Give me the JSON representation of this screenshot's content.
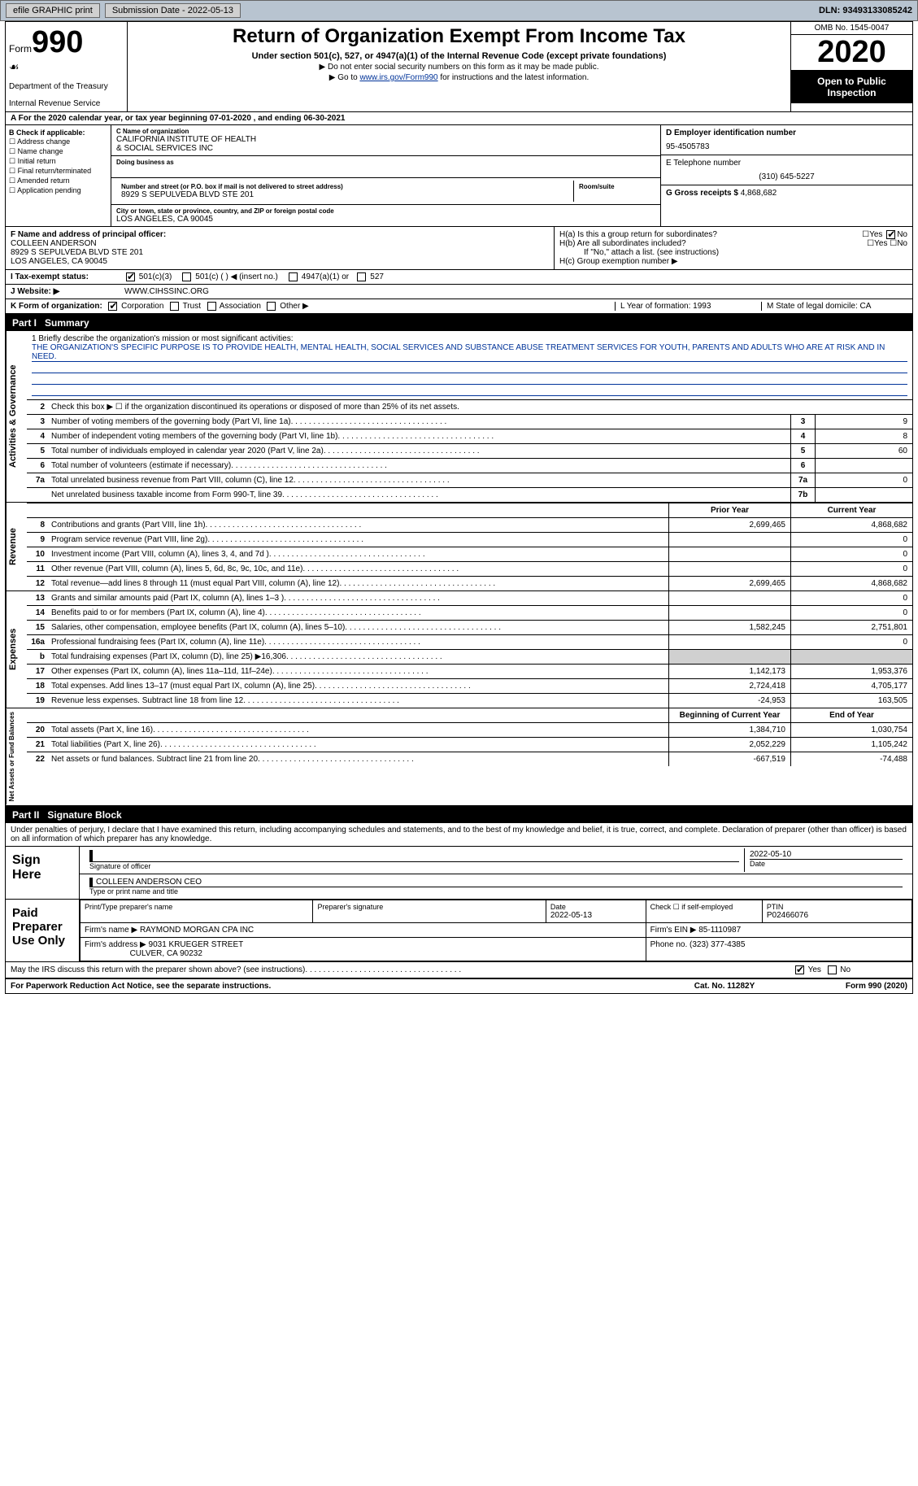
{
  "topbar": {
    "efile": "efile GRAPHIC print",
    "submission_label": "Submission Date - 2022-05-13",
    "dln_label": "DLN: 93493133085242"
  },
  "header": {
    "form_word": "Form",
    "form_no": "990",
    "dept": "Department of the Treasury",
    "irs": "Internal Revenue Service",
    "title": "Return of Organization Exempt From Income Tax",
    "subtitle": "Under section 501(c), 527, or 4947(a)(1) of the Internal Revenue Code (except private foundations)",
    "note1": "▶ Do not enter social security numbers on this form as it may be made public.",
    "note2_pre": "▶ Go to ",
    "note2_link": "www.irs.gov/Form990",
    "note2_post": " for instructions and the latest information.",
    "omb": "OMB No. 1545-0047",
    "year": "2020",
    "open": "Open to Public Inspection"
  },
  "line_a": "A For the 2020 calendar year, or tax year beginning 07-01-2020    , and ending 06-30-2021",
  "box_b": {
    "title": "B Check if applicable:",
    "items": [
      "Address change",
      "Name change",
      "Initial return",
      "Final return/terminated",
      "Amended return",
      "Application pending"
    ]
  },
  "box_c": {
    "name_label": "C Name of organization",
    "name1": "CALIFORNIA INSTITUTE OF HEALTH",
    "name2": "& SOCIAL SERVICES INC",
    "dba_label": "Doing business as",
    "addr_label": "Number and street (or P.O. box if mail is not delivered to street address)",
    "room_label": "Room/suite",
    "addr": "8929 S SEPULVEDA BLVD STE 201",
    "city_label": "City or town, state or province, country, and ZIP or foreign postal code",
    "city": "LOS ANGELES, CA  90045"
  },
  "box_d": {
    "label": "D Employer identification number",
    "value": "95-4505783"
  },
  "box_e": {
    "label": "E Telephone number",
    "value": "(310) 645-5227"
  },
  "box_g": {
    "label": "G Gross receipts $",
    "value": "4,868,682"
  },
  "box_f": {
    "label": "F  Name and address of principal officer:",
    "name": "COLLEEN ANDERSON",
    "addr1": "8929 S SEPULVEDA BLVD STE 201",
    "addr2": "LOS ANGELES, CA  90045"
  },
  "box_h": {
    "a": "H(a)  Is this a group return for subordinates?",
    "b": "H(b)  Are all subordinates included?",
    "b_note": "If \"No,\" attach a list. (see instructions)",
    "c": "H(c)  Group exemption number ▶",
    "yes": "Yes",
    "no": "No"
  },
  "row_i": {
    "label": "I    Tax-exempt status:",
    "o1": "501(c)(3)",
    "o2": "501(c) (  ) ◀ (insert no.)",
    "o3": "4947(a)(1) or",
    "o4": "527"
  },
  "row_j": {
    "label": "J   Website: ▶",
    "value": "WWW.CIHSSINC.ORG"
  },
  "row_k": {
    "label": "K Form of organization:",
    "o1": "Corporation",
    "o2": "Trust",
    "o3": "Association",
    "o4": "Other ▶",
    "l": "L Year of formation: 1993",
    "m": "M State of legal domicile: CA"
  },
  "part1": {
    "no": "Part I",
    "title": "Summary"
  },
  "mission": {
    "q": "1  Briefly describe the organization's mission or most significant activities:",
    "text": "THE ORGANIZATION'S SPECIFIC PURPOSE IS TO PROVIDE HEALTH, MENTAL HEALTH, SOCIAL SERVICES AND SUBSTANCE ABUSE TREATMENT SERVICES FOR YOUTH, PARENTS AND ADULTS WHO ARE AT RISK AND IN NEED."
  },
  "gov_lines": {
    "l2": "Check this box ▶ ☐  if the organization discontinued its operations or disposed of more than 25% of its net assets.",
    "rows": [
      {
        "n": "3",
        "d": "Number of voting members of the governing body (Part VI, line 1a)",
        "box": "3",
        "v": "9"
      },
      {
        "n": "4",
        "d": "Number of independent voting members of the governing body (Part VI, line 1b)",
        "box": "4",
        "v": "8"
      },
      {
        "n": "5",
        "d": "Total number of individuals employed in calendar year 2020 (Part V, line 2a)",
        "box": "5",
        "v": "60"
      },
      {
        "n": "6",
        "d": "Total number of volunteers (estimate if necessary)",
        "box": "6",
        "v": ""
      },
      {
        "n": "7a",
        "d": "Total unrelated business revenue from Part VIII, column (C), line 12",
        "box": "7a",
        "v": "0"
      },
      {
        "n": "",
        "d": "Net unrelated business taxable income from Form 990-T, line 39",
        "box": "7b",
        "v": ""
      }
    ]
  },
  "col_hdr": {
    "py": "Prior Year",
    "cy": "Current Year"
  },
  "revenue": {
    "label": "Revenue",
    "rows": [
      {
        "n": "8",
        "d": "Contributions and grants (Part VIII, line 1h)",
        "py": "2,699,465",
        "cy": "4,868,682"
      },
      {
        "n": "9",
        "d": "Program service revenue (Part VIII, line 2g)",
        "py": "",
        "cy": "0"
      },
      {
        "n": "10",
        "d": "Investment income (Part VIII, column (A), lines 3, 4, and 7d )",
        "py": "",
        "cy": "0"
      },
      {
        "n": "11",
        "d": "Other revenue (Part VIII, column (A), lines 5, 6d, 8c, 9c, 10c, and 11e)",
        "py": "",
        "cy": "0"
      },
      {
        "n": "12",
        "d": "Total revenue—add lines 8 through 11 (must equal Part VIII, column (A), line 12)",
        "py": "2,699,465",
        "cy": "4,868,682"
      }
    ]
  },
  "expenses": {
    "label": "Expenses",
    "rows": [
      {
        "n": "13",
        "d": "Grants and similar amounts paid (Part IX, column (A), lines 1–3 )",
        "py": "",
        "cy": "0"
      },
      {
        "n": "14",
        "d": "Benefits paid to or for members (Part IX, column (A), line 4)",
        "py": "",
        "cy": "0"
      },
      {
        "n": "15",
        "d": "Salaries, other compensation, employee benefits (Part IX, column (A), lines 5–10)",
        "py": "1,582,245",
        "cy": "2,751,801"
      },
      {
        "n": "16a",
        "d": "Professional fundraising fees (Part IX, column (A), line 11e)",
        "py": "",
        "cy": "0"
      },
      {
        "n": "b",
        "d": "Total fundraising expenses (Part IX, column (D), line 25) ▶16,306",
        "py": "shade",
        "cy": "shade"
      },
      {
        "n": "17",
        "d": "Other expenses (Part IX, column (A), lines 11a–11d, 11f–24e)",
        "py": "1,142,173",
        "cy": "1,953,376"
      },
      {
        "n": "18",
        "d": "Total expenses. Add lines 13–17 (must equal Part IX, column (A), line 25)",
        "py": "2,724,418",
        "cy": "4,705,177"
      },
      {
        "n": "19",
        "d": "Revenue less expenses. Subtract line 18 from line 12",
        "py": "-24,953",
        "cy": "163,505"
      }
    ]
  },
  "netassets": {
    "label": "Net Assets or Fund Balances",
    "hdr_py": "Beginning of Current Year",
    "hdr_cy": "End of Year",
    "rows": [
      {
        "n": "20",
        "d": "Total assets (Part X, line 16)",
        "py": "1,384,710",
        "cy": "1,030,754"
      },
      {
        "n": "21",
        "d": "Total liabilities (Part X, line 26)",
        "py": "2,052,229",
        "cy": "1,105,242"
      },
      {
        "n": "22",
        "d": "Net assets or fund balances. Subtract line 21 from line 20",
        "py": "-667,519",
        "cy": "-74,488"
      }
    ]
  },
  "part2": {
    "no": "Part II",
    "title": "Signature Block"
  },
  "penalties": "Under penalties of perjury, I declare that I have examined this return, including accompanying schedules and statements, and to the best of my knowledge and belief, it is true, correct, and complete. Declaration of preparer (other than officer) is based on all information of which preparer has any knowledge.",
  "sign": {
    "side": "Sign Here",
    "sig_label": "Signature of officer",
    "date_label": "Date",
    "date": "2022-05-10",
    "name": "COLLEEN ANDERSON  CEO",
    "name_label": "Type or print name and title"
  },
  "preparer": {
    "side": "Paid Preparer Use Only",
    "h1": "Print/Type preparer's name",
    "h2": "Preparer's signature",
    "h3": "Date",
    "h3v": "2022-05-13",
    "h4": "Check ☐ if self-employed",
    "h5": "PTIN",
    "h5v": "P02466076",
    "firm_label": "Firm's name    ▶",
    "firm": "RAYMOND MORGAN CPA INC",
    "ein_label": "Firm's EIN ▶",
    "ein": "85-1110987",
    "addr_label": "Firm's address ▶",
    "addr1": "9031 KRUEGER STREET",
    "addr2": "CULVER, CA  90232",
    "phone_label": "Phone no.",
    "phone": "(323) 377-4385"
  },
  "discuss": {
    "q": "May the IRS discuss this return with the preparer shown above? (see instructions)",
    "yes": "Yes",
    "no": "No"
  },
  "footer": {
    "l": "For Paperwork Reduction Act Notice, see the separate instructions.",
    "c": "Cat. No. 11282Y",
    "r": "Form 990 (2020)"
  },
  "colors": {
    "topbar_bg": "#b8c4d0",
    "link": "#003399",
    "shade": "#d0d0d0"
  }
}
